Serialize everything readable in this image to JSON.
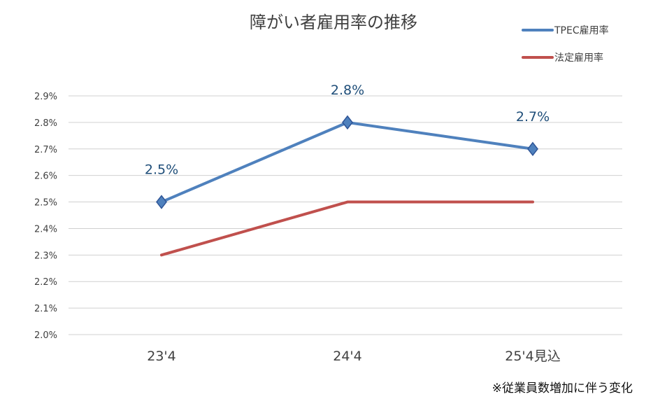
{
  "chart_data": {
    "type": "line",
    "title": "障がい者雇用率の推移",
    "categories": [
      "23'4",
      "24'4",
      "25'4見込"
    ],
    "series": [
      {
        "name": "TPEC雇用率",
        "values": [
          2.5,
          2.8,
          2.7
        ],
        "color": "#4f81bd",
        "marker": "diamond",
        "labels": [
          "2.5%",
          "2.8%",
          "2.7%"
        ]
      },
      {
        "name": "法定雇用率",
        "values": [
          2.3,
          2.5,
          2.5
        ],
        "color": "#c0504d",
        "marker": "none"
      }
    ],
    "ylim": [
      2.0,
      2.9
    ],
    "yticks": [
      "2.0%",
      "2.1%",
      "2.2%",
      "2.3%",
      "2.4%",
      "2.5%",
      "2.6%",
      "2.7%",
      "2.8%",
      "2.9%"
    ],
    "grid": true,
    "legend": "top-right",
    "xlabel": "",
    "ylabel": ""
  },
  "footnote": "※従業員数増加に伴う変化"
}
